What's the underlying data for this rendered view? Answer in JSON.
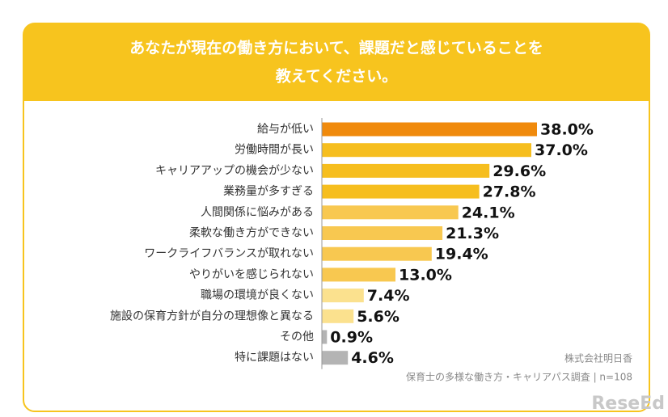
{
  "chart_data": {
    "type": "hbar",
    "title": [
      "あなたが現在の働き方において、課題だと感じていることを",
      "教えてください。"
    ],
    "categories": [
      "給与が低い",
      "労働時間が長い",
      "キャリアアップの機会が少ない",
      "業務量が多すぎる",
      "人間関係に悩みがある",
      "柔軟な働き方ができない",
      "ワークライフバランスが取れない",
      "やりがいを感じられない",
      "職場の環境が良くない",
      "施設の保育方針が自分の理想像と異なる",
      "その他",
      "特に課題はない"
    ],
    "values": [
      38.0,
      37.0,
      29.6,
      27.8,
      24.1,
      21.3,
      19.4,
      13.0,
      7.4,
      5.6,
      0.9,
      4.6
    ],
    "value_labels": [
      "38.0%",
      "37.0%",
      "29.6%",
      "27.8%",
      "24.1%",
      "21.3%",
      "19.4%",
      "13.0%",
      "7.4%",
      "5.6%",
      "0.9%",
      "4.6%"
    ],
    "colors": [
      "#f08a0c",
      "#f6be1e",
      "#f6be1e",
      "#f6be1e",
      "#f8c850",
      "#f8c850",
      "#f8c850",
      "#f8c850",
      "#fbe18e",
      "#fbe18e",
      "#b4b4b4",
      "#b4b4b4"
    ],
    "source": [
      "株式会社明日香",
      "保育士の多様な働き方・キャリアパス調査 | n=108"
    ],
    "watermark": "ReseEd"
  }
}
